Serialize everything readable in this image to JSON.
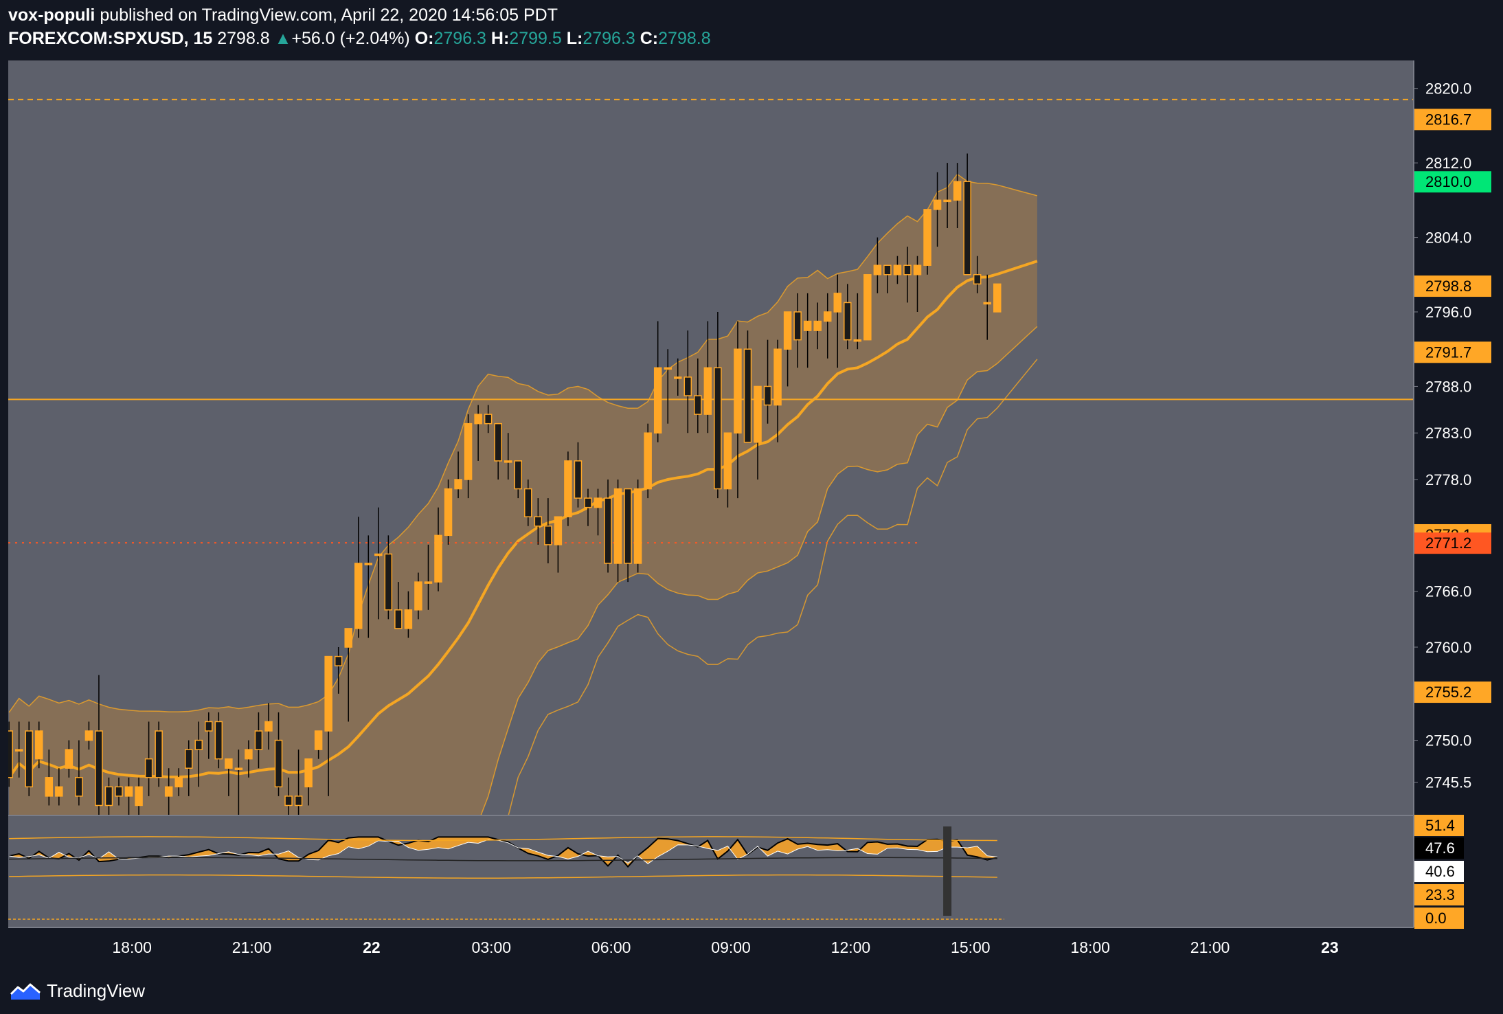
{
  "header": {
    "author": "vox-populi",
    "published_text": "published on TradingView.com, April 22, 2020 14:56:05 PDT",
    "symbol": "FOREXCOM:SPXUSD, 15",
    "last_price": "2798.8",
    "change_arrow": "▲",
    "change": "+56.0 (+2.04%)",
    "open_label": "O:",
    "open": "2796.3",
    "high_label": "H:",
    "high": "2799.5",
    "low_label": "L:",
    "low": "2796.3",
    "close_label": "C:",
    "close": "2798.8"
  },
  "footer": {
    "logo_text": "TradingView"
  },
  "colors": {
    "background": "#5d606b",
    "outer": "#131722",
    "candle": "#ffa726",
    "band_fill": "#a87b45",
    "line": "#f5a623",
    "green_label": "#00e676",
    "red_label": "#ff5722",
    "teal": "#26a69a"
  },
  "chart_data": {
    "type": "candlestick",
    "price_axis": {
      "ticks": [
        2745.5,
        2750.0,
        2755.2,
        2760.0,
        2766.0,
        2771.2,
        2772.1,
        2778.0,
        2783.0,
        2788.0,
        2791.7,
        2796.0,
        2798.8,
        2804.0,
        2810.0,
        2812.0,
        2816.7,
        2820.0
      ],
      "tick_labels": [
        "2745.5",
        "2750.0",
        "2760.0",
        "2766.0",
        "2778.0",
        "2783.0",
        "2788.0",
        "2796.0",
        "2804.0",
        "2812.0",
        "2820.0"
      ],
      "ylim": [
        2742,
        2823
      ]
    },
    "price_labels": [
      {
        "value": 2816.7,
        "text": "2816.7",
        "color": "#ffa726"
      },
      {
        "value": 2810.0,
        "text": "2810.0",
        "color": "#00e676"
      },
      {
        "value": 2798.8,
        "text": "2798.8",
        "color": "#ffa726"
      },
      {
        "value": 2791.7,
        "text": "2791.7",
        "color": "#ffa726"
      },
      {
        "value": 2772.1,
        "text": "2772.1",
        "color": "#ffa726"
      },
      {
        "value": 2771.2,
        "text": "2771.2",
        "color": "#ff5722"
      },
      {
        "value": 2755.2,
        "text": "2755.2",
        "color": "#ffa726"
      }
    ],
    "time_axis": {
      "labels": [
        "18:00",
        "21:00",
        "22",
        "03:00",
        "06:00",
        "09:00",
        "12:00",
        "15:00",
        "18:00",
        "21:00",
        "23"
      ],
      "bold": [
        false,
        false,
        true,
        false,
        false,
        false,
        false,
        false,
        false,
        false,
        true
      ],
      "hours": [
        -6,
        -3,
        0,
        3,
        6,
        9,
        12,
        15,
        18,
        21,
        24
      ],
      "xlim_hours": [
        -9.1,
        26.1
      ]
    },
    "horizontal_lines": [
      {
        "value": 2818.8,
        "style": "dashed"
      },
      {
        "value": 2786.6,
        "style": "solid"
      },
      {
        "value": 2771.2,
        "style": "dotted",
        "color": "#ff5722"
      }
    ],
    "candles_ohlc": [
      [
        2751,
        2752,
        2745,
        2746
      ],
      [
        2749,
        2752,
        2746,
        2749
      ],
      [
        2751,
        2752,
        2744,
        2745
      ],
      [
        2748,
        2752,
        2747,
        2751
      ],
      [
        2744,
        2749,
        2743,
        2746
      ],
      [
        2744,
        2747,
        2743,
        2745
      ],
      [
        2747,
        2750,
        2746,
        2749
      ],
      [
        2746,
        2750,
        2743,
        2744
      ],
      [
        2750,
        2752,
        2749,
        2751
      ],
      [
        2751,
        2757,
        2742,
        2743
      ],
      [
        2745,
        2746,
        2742,
        2743
      ],
      [
        2745,
        2746,
        2743,
        2744
      ],
      [
        2744,
        2746,
        2742,
        2745
      ],
      [
        2743,
        2746,
        2742,
        2745
      ],
      [
        2748,
        2752,
        2744,
        2746
      ],
      [
        2751,
        2752,
        2745,
        2746
      ],
      [
        2744,
        2747,
        2742,
        2745
      ],
      [
        2745,
        2747,
        2744,
        2746
      ],
      [
        2749,
        2750,
        2744,
        2747
      ],
      [
        2750,
        2752,
        2745,
        2749
      ],
      [
        2752,
        2753,
        2748,
        2751
      ],
      [
        2752,
        2753,
        2747,
        2748
      ],
      [
        2747,
        2748,
        2744,
        2748
      ],
      [
        2747,
        2749,
        2742,
        2747
      ],
      [
        2748,
        2750,
        2746,
        2749
      ],
      [
        2751,
        2753,
        2747,
        2749
      ],
      [
        2751,
        2754,
        2749,
        2752
      ],
      [
        2750,
        2753,
        2744,
        2745
      ],
      [
        2744,
        2746,
        2742,
        2743
      ],
      [
        2744,
        2749,
        2742,
        2743
      ],
      [
        2745,
        2746,
        2743,
        2748
      ],
      [
        2749,
        2750,
        2748,
        2751
      ],
      [
        2751,
        2752,
        2744,
        2759
      ],
      [
        2759,
        2760,
        2755,
        2758
      ],
      [
        2760,
        2761,
        2752,
        2762
      ],
      [
        2762,
        2774,
        2761,
        2769
      ],
      [
        2769,
        2772,
        2761,
        2769
      ],
      [
        2770,
        2775,
        2763,
        2770
      ],
      [
        2770,
        2772,
        2763,
        2764
      ],
      [
        2764,
        2767,
        2762,
        2762
      ],
      [
        2762,
        2766,
        2761,
        2764
      ],
      [
        2764,
        2768,
        2763,
        2767
      ],
      [
        2767,
        2771,
        2764,
        2767
      ],
      [
        2767,
        2775,
        2766,
        2772
      ],
      [
        2772,
        2778,
        2771,
        2777
      ],
      [
        2777,
        2781,
        2776,
        2778
      ],
      [
        2778,
        2785,
        2776,
        2784
      ],
      [
        2784,
        2786,
        2780,
        2785
      ],
      [
        2785,
        2786,
        2783,
        2784
      ],
      [
        2784,
        2784,
        2778,
        2780
      ],
      [
        2780,
        2783,
        2778,
        2780
      ],
      [
        2780,
        2780,
        2776,
        2777
      ],
      [
        2777,
        2778,
        2773,
        2774
      ],
      [
        2774,
        2776,
        2771,
        2773
      ],
      [
        2773,
        2776,
        2769,
        2771
      ],
      [
        2771,
        2774,
        2768,
        2774
      ],
      [
        2774,
        2781,
        2773,
        2780
      ],
      [
        2780,
        2782,
        2775,
        2776
      ],
      [
        2776,
        2777,
        2773,
        2775
      ],
      [
        2775,
        2777,
        2772,
        2776
      ],
      [
        2776,
        2778,
        2768,
        2769
      ],
      [
        2769,
        2778,
        2767,
        2777
      ],
      [
        2777,
        2777,
        2767,
        2769
      ],
      [
        2769,
        2778,
        2768,
        2777
      ],
      [
        2777,
        2784,
        2776,
        2783
      ],
      [
        2783,
        2795,
        2782,
        2790
      ],
      [
        2790,
        2792,
        2784,
        2790
      ],
      [
        2789,
        2791,
        2787,
        2789
      ],
      [
        2789,
        2794,
        2783,
        2787
      ],
      [
        2787,
        2791,
        2783,
        2785
      ],
      [
        2785,
        2795,
        2783,
        2790
      ],
      [
        2790,
        2796,
        2776,
        2777
      ],
      [
        2777,
        2782,
        2775,
        2783
      ],
      [
        2783,
        2795,
        2776,
        2792
      ],
      [
        2792,
        2794,
        2783,
        2782
      ],
      [
        2782,
        2788,
        2778,
        2788
      ],
      [
        2788,
        2793,
        2784,
        2786
      ],
      [
        2786,
        2793,
        2782,
        2792
      ],
      [
        2792,
        2796,
        2788,
        2796
      ],
      [
        2796,
        2798,
        2790,
        2793
      ],
      [
        2794,
        2798,
        2790,
        2795
      ],
      [
        2794,
        2797,
        2792,
        2795
      ],
      [
        2795,
        2798,
        2791,
        2796
      ],
      [
        2796,
        2800,
        2790,
        2798
      ],
      [
        2797,
        2799,
        2792,
        2793
      ],
      [
        2793,
        2798,
        2792,
        2793
      ],
      [
        2793,
        2800,
        2793,
        2800
      ],
      [
        2800,
        2804,
        2798,
        2801
      ],
      [
        2801,
        2801,
        2798,
        2800
      ],
      [
        2800,
        2802,
        2799,
        2801
      ],
      [
        2801,
        2803,
        2797,
        2800
      ],
      [
        2800,
        2802,
        2796,
        2801
      ],
      [
        2801,
        2806,
        2800,
        2807
      ],
      [
        2807,
        2811,
        2803,
        2808
      ],
      [
        2808,
        2812,
        2805,
        2808
      ],
      [
        2808,
        2812,
        2805,
        2810
      ],
      [
        2810,
        2813,
        2801,
        2800
      ],
      [
        2800,
        2802,
        2798,
        2799
      ],
      [
        2797,
        2800,
        2793,
        2797
      ],
      [
        2796,
        2799,
        2796,
        2799
      ]
    ],
    "oscillator": {
      "panel": "rsi-like",
      "labels": [
        {
          "text": "51.4",
          "color": "#ffa726"
        },
        {
          "text": "47.6",
          "color": "#000000"
        },
        {
          "text": "40.6",
          "color": "#ffffff"
        },
        {
          "text": "23.3",
          "color": "#ffa726"
        },
        {
          "text": "0.0",
          "color": "#ffa726"
        }
      ],
      "values": [
        51.4,
        47.6,
        40.6,
        23.3,
        0.0
      ]
    }
  }
}
